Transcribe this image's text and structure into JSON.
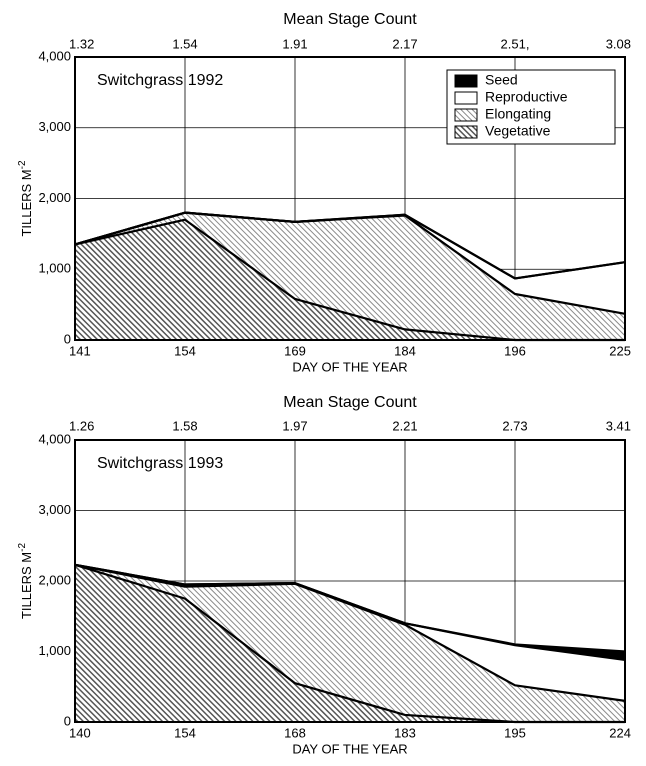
{
  "chart_data": [
    {
      "type": "stacked_area",
      "top_axis_label": "Mean Stage Count",
      "top_categories": [
        "1.32",
        "1.54",
        "1.91",
        "2.17",
        "2.51,",
        "3.08"
      ],
      "categories": [
        "141",
        "154",
        "169",
        "184",
        "196",
        "225"
      ],
      "x_label": "DAY OF THE YEAR",
      "y_label": "TILLERS M",
      "y_label_superscript": "-2",
      "annotation": "Switchgrass 1992",
      "ylim": [
        0,
        4000
      ],
      "yticks": [
        0,
        {
          "value": 1000,
          "label": "1,000"
        },
        {
          "value": 2000,
          "label": "2,000"
        },
        {
          "value": 3000,
          "label": "3,000"
        },
        {
          "value": 4000,
          "label": "4,000"
        }
      ],
      "grid": true,
      "legend": "upper right",
      "series": [
        {
          "name": "Vegetative",
          "color": "#555555",
          "hatched": true,
          "values": [
            1350,
            1700,
            580,
            150,
            0,
            0
          ]
        },
        {
          "name": "Elongating",
          "color": "#8a8a8a",
          "hatched": true,
          "values": [
            0,
            100,
            1090,
            1610,
            650,
            370
          ]
        },
        {
          "name": "Reproductive",
          "color": "#ffffff",
          "hatched": false,
          "values": [
            0,
            0,
            0,
            10,
            220,
            730
          ]
        },
        {
          "name": "Seed",
          "color": "#000000",
          "hatched": false,
          "values": [
            0,
            0,
            0,
            0,
            0,
            0
          ]
        }
      ]
    },
    {
      "type": "stacked_area",
      "top_axis_label": "Mean Stage Count",
      "top_categories": [
        "1.26",
        "1.58",
        "1.97",
        "2.21",
        "2.73",
        "3.41"
      ],
      "categories": [
        "140",
        "154",
        "168",
        "183",
        "195",
        "224"
      ],
      "x_label": "DAY OF THE YEAR",
      "y_label": "TILLERS M",
      "y_label_superscript": "-2",
      "annotation": "Switchgrass 1993",
      "ylim": [
        0,
        4000
      ],
      "yticks": [
        0,
        {
          "value": 1000,
          "label": "1,000"
        },
        {
          "value": 2000,
          "label": "2,000"
        },
        {
          "value": 3000,
          "label": "3,000"
        },
        {
          "value": 4000,
          "label": "4,000"
        }
      ],
      "grid": true,
      "series": [
        {
          "name": "Vegetative",
          "color": "#555555",
          "hatched": true,
          "values": [
            2230,
            1750,
            550,
            100,
            0,
            0
          ]
        },
        {
          "name": "Elongating",
          "color": "#8a8a8a",
          "hatched": true,
          "values": [
            0,
            170,
            1410,
            1280,
            520,
            300
          ]
        },
        {
          "name": "Reproductive",
          "color": "#ffffff",
          "hatched": false,
          "values": [
            0,
            30,
            10,
            20,
            570,
            580
          ]
        },
        {
          "name": "Seed",
          "color": "#000000",
          "hatched": false,
          "values": [
            0,
            0,
            0,
            0,
            10,
            120
          ]
        }
      ]
    }
  ]
}
